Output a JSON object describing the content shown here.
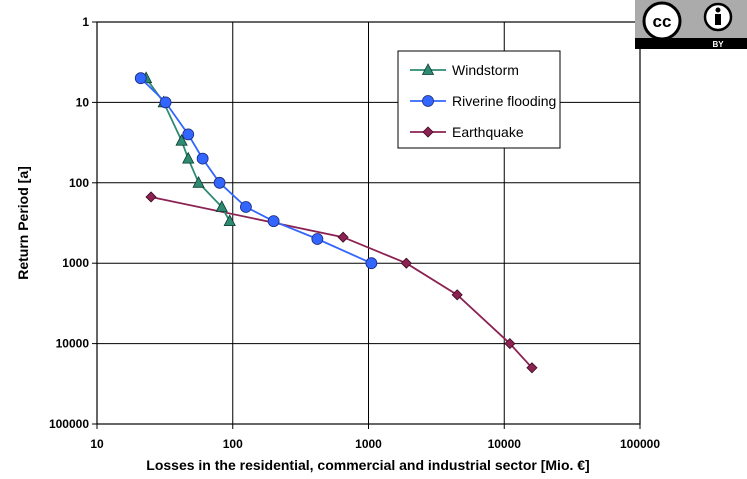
{
  "chart_data": {
    "type": "line",
    "xlabel": "Losses in the residential, commercial and industrial sector [Mio. €]",
    "ylabel": "Return Period [a]",
    "x_scale": "log",
    "y_scale": "log",
    "y_inverted": true,
    "xlim": [
      10,
      100000
    ],
    "ylim": [
      1,
      100000
    ],
    "x_ticks": [
      "10",
      "100",
      "1000",
      "10000",
      "100000"
    ],
    "y_ticks": [
      "1",
      "10",
      "100",
      "1000",
      "10000",
      "100000"
    ],
    "grid": true,
    "legend_position": "top-right",
    "series": [
      {
        "name": "Windstorm",
        "color": "#2e8b72",
        "marker": "triangle",
        "x": [
          23,
          31,
          42,
          47,
          56,
          83,
          95
        ],
        "y": [
          5,
          10,
          30,
          50,
          100,
          200,
          300
        ]
      },
      {
        "name": "Riverine flooding",
        "color": "#3366ff",
        "marker": "circle",
        "x": [
          21,
          32,
          47,
          60,
          80,
          125,
          200,
          420,
          1050
        ],
        "y": [
          5,
          10,
          25,
          50,
          100,
          200,
          300,
          500,
          1000
        ]
      },
      {
        "name": "Earthquake",
        "color": "#8b2252",
        "marker": "diamond",
        "x": [
          25,
          650,
          1900,
          4500,
          11000,
          16000
        ],
        "y": [
          150,
          475,
          1000,
          2475,
          10000,
          20000
        ]
      }
    ]
  },
  "license_badge": {
    "cc_text": "cc",
    "by_text": "BY"
  }
}
